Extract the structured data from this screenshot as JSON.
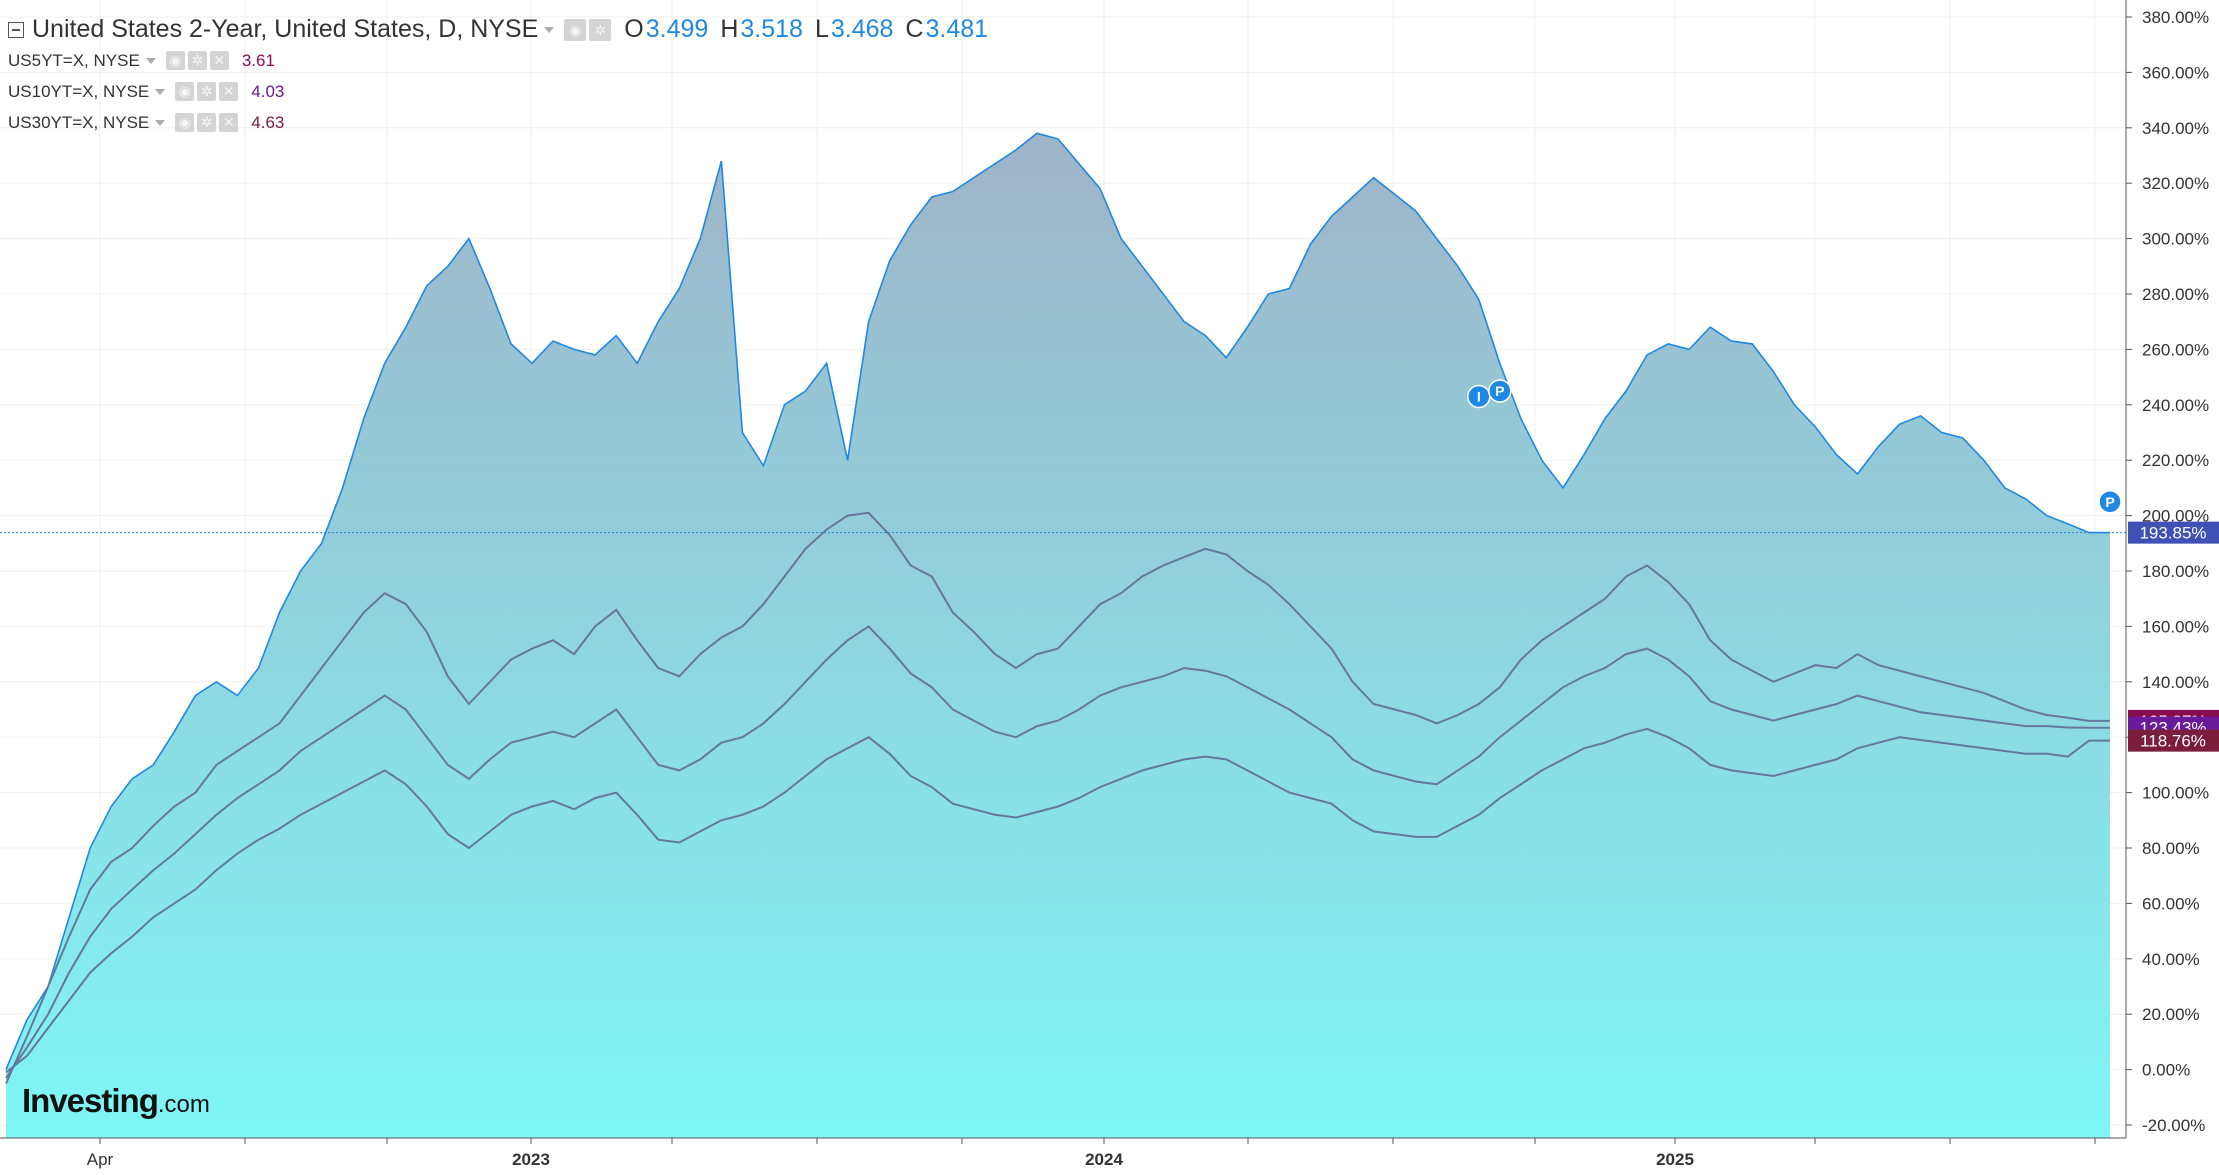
{
  "legend": {
    "main": {
      "title": "United States 2-Year, United States, D, NYSE",
      "o_label": "O",
      "o_value": "3.499",
      "h_label": "H",
      "h_value": "3.518",
      "l_label": "L",
      "l_value": "3.468",
      "c_label": "C",
      "c_value": "3.481"
    },
    "series": [
      {
        "name": "US5YT=X, NYSE",
        "value": "3.61",
        "color": "#880e4f"
      },
      {
        "name": "US10YT=X, NYSE",
        "value": "4.03",
        "color": "#6a1b9a"
      },
      {
        "name": "US30YT=X, NYSE",
        "value": "4.63",
        "color": "#7b1e3c"
      }
    ]
  },
  "logo": {
    "brand": "Investing",
    "suffix": ".com"
  },
  "colors": {
    "main_line": "#1e88e5",
    "fill_top": "#9fb4c8",
    "fill_bottom": "#7ff6f6",
    "compare_line": "#66779e",
    "axis_text": "#333333",
    "grid": "#efefef"
  },
  "chart_data": {
    "type": "area",
    "ylim": [
      -20,
      380
    ],
    "y_ticks": [
      "380.00%",
      "360.00%",
      "340.00%",
      "320.00%",
      "300.00%",
      "280.00%",
      "260.00%",
      "240.00%",
      "220.00%",
      "200.00%",
      "180.00%",
      "160.00%",
      "140.00%",
      "120.00%",
      "100.00%",
      "80.00%",
      "60.00%",
      "40.00%",
      "20.00%",
      "0.00%",
      "-20.00%"
    ],
    "x_ticks": [
      "Apr",
      "2023",
      "2024",
      "2025"
    ],
    "series": [
      {
        "name": "United States 2-Year",
        "role": "main-area",
        "last_label": "193.85%",
        "label_color": "#3f51b5",
        "values": [
          0,
          18,
          30,
          55,
          80,
          95,
          105,
          110,
          122,
          135,
          140,
          135,
          145,
          165,
          180,
          190,
          210,
          235,
          255,
          268,
          283,
          290,
          300,
          282,
          262,
          255,
          263,
          260,
          258,
          265,
          255,
          270,
          282,
          300,
          328,
          230,
          218,
          240,
          245,
          255,
          220,
          270,
          292,
          305,
          315,
          317,
          322,
          327,
          332,
          338,
          336,
          327,
          318,
          300,
          290,
          280,
          270,
          265,
          257,
          268,
          280,
          282,
          298,
          308,
          315,
          322,
          316,
          310,
          300,
          290,
          278,
          255,
          235,
          220,
          210,
          222,
          235,
          245,
          258,
          262,
          260,
          268,
          263,
          262,
          252,
          240,
          232,
          222,
          215,
          225,
          233,
          236,
          230,
          228,
          220,
          210,
          206,
          200,
          197,
          193.85,
          193.85
        ]
      },
      {
        "name": "US5YT=X",
        "role": "compare",
        "last_label": "125.87%",
        "label_color": "#880e4f",
        "values": [
          -5,
          12,
          30,
          48,
          65,
          75,
          80,
          88,
          95,
          100,
          110,
          115,
          120,
          125,
          135,
          145,
          155,
          165,
          172,
          168,
          158,
          142,
          132,
          140,
          148,
          152,
          155,
          150,
          160,
          166,
          155,
          145,
          142,
          150,
          156,
          160,
          168,
          178,
          188,
          195,
          200,
          201,
          193,
          182,
          178,
          165,
          158,
          150,
          145,
          150,
          152,
          160,
          168,
          172,
          178,
          182,
          185,
          188,
          186,
          180,
          175,
          168,
          160,
          152,
          140,
          132,
          130,
          128,
          125,
          128,
          132,
          138,
          148,
          155,
          160,
          165,
          170,
          178,
          182,
          176,
          168,
          155,
          148,
          144,
          140,
          143,
          146,
          145,
          150,
          146,
          144,
          142,
          140,
          138,
          136,
          133,
          130,
          128,
          127,
          125.87,
          125.87
        ]
      },
      {
        "name": "US10YT=X",
        "role": "compare",
        "last_label": "123.43%",
        "label_color": "#6a1b9a",
        "values": [
          -3,
          8,
          20,
          35,
          48,
          58,
          65,
          72,
          78,
          85,
          92,
          98,
          103,
          108,
          115,
          120,
          125,
          130,
          135,
          130,
          120,
          110,
          105,
          112,
          118,
          120,
          122,
          120,
          125,
          130,
          120,
          110,
          108,
          112,
          118,
          120,
          125,
          132,
          140,
          148,
          155,
          160,
          152,
          143,
          138,
          130,
          126,
          122,
          120,
          124,
          126,
          130,
          135,
          138,
          140,
          142,
          145,
          144,
          142,
          138,
          134,
          130,
          125,
          120,
          112,
          108,
          106,
          104,
          103,
          108,
          113,
          120,
          126,
          132,
          138,
          142,
          145,
          150,
          152,
          148,
          142,
          133,
          130,
          128,
          126,
          128,
          130,
          132,
          135,
          133,
          131,
          129,
          128,
          127,
          126,
          125,
          124,
          124,
          123.5,
          123.43,
          123.43
        ]
      },
      {
        "name": "US30YT=X",
        "role": "compare",
        "last_label": "118.76%",
        "label_color": "#7b1e3c",
        "values": [
          -1,
          5,
          15,
          25,
          35,
          42,
          48,
          55,
          60,
          65,
          72,
          78,
          83,
          87,
          92,
          96,
          100,
          104,
          108,
          103,
          95,
          85,
          80,
          86,
          92,
          95,
          97,
          94,
          98,
          100,
          92,
          83,
          82,
          86,
          90,
          92,
          95,
          100,
          106,
          112,
          116,
          120,
          114,
          106,
          102,
          96,
          94,
          92,
          91,
          93,
          95,
          98,
          102,
          105,
          108,
          110,
          112,
          113,
          112,
          108,
          104,
          100,
          98,
          96,
          90,
          86,
          85,
          84,
          84,
          88,
          92,
          98,
          103,
          108,
          112,
          116,
          118,
          121,
          123,
          120,
          116,
          110,
          108,
          107,
          106,
          108,
          110,
          112,
          116,
          118,
          120,
          119,
          118,
          117,
          116,
          115,
          114,
          114,
          113,
          118.76,
          118.76
        ]
      }
    ],
    "markers": [
      {
        "label": "I",
        "at_index": 70,
        "value": 243
      },
      {
        "label": "P",
        "at_index": 71,
        "value": 245
      },
      {
        "label": "P",
        "at_index": 100,
        "value": 205
      }
    ]
  }
}
